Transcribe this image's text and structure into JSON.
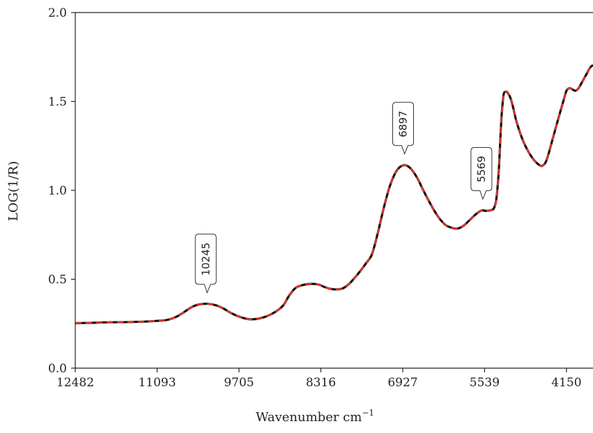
{
  "chart_data": {
    "type": "line",
    "title": "",
    "xlabel": "Wavenumber cm",
    "xlabel_superscript": "−1",
    "ylabel": "LOG(1/R)",
    "xlim": [
      12482,
      3700
    ],
    "ylim": [
      0.0,
      2.0
    ],
    "x_reversed": true,
    "x_ticks": [
      12482,
      11093,
      9705,
      8316,
      6927,
      5539,
      4150
    ],
    "x_tick_labels": [
      "12482",
      "11093",
      "9705",
      "8316",
      "6927",
      "5539",
      "4150"
    ],
    "y_ticks": [
      0.0,
      0.5,
      1.0,
      1.5,
      2.0
    ],
    "y_tick_labels": [
      "0.0",
      "0.5",
      "1.0",
      "1.5",
      "2.0"
    ],
    "grid": false,
    "series": [
      {
        "color": "#111111",
        "style": "solid",
        "x": [
          12482,
          12200,
          11900,
          11600,
          11300,
          11093,
          10950,
          10850,
          10750,
          10650,
          10550,
          10450,
          10350,
          10245,
          10150,
          10050,
          9950,
          9850,
          9705,
          9550,
          9400,
          9250,
          9150,
          9050,
          8950,
          8850,
          8750,
          8650,
          8550,
          8450,
          8350,
          8316,
          8250,
          8150,
          8050,
          7950,
          7850,
          7750,
          7650,
          7550,
          7450,
          7350,
          7250,
          7150,
          7050,
          6980,
          6927,
          6897,
          6850,
          6800,
          6750,
          6700,
          6650,
          6600,
          6500,
          6400,
          6300,
          6200,
          6100,
          6000,
          5900,
          5800,
          5700,
          5620,
          5569,
          5539,
          5500,
          5460,
          5420,
          5380,
          5340,
          5300,
          5270,
          5250,
          5220,
          5200,
          5170,
          5150,
          5100,
          5050,
          5000,
          4900,
          4800,
          4700,
          4600,
          4550,
          4500,
          4450,
          4400,
          4300,
          4200,
          4150,
          4100,
          4050,
          4000,
          3950,
          3900,
          3850,
          3800,
          3750,
          3700
        ],
        "y": [
          0.253,
          0.255,
          0.258,
          0.259,
          0.262,
          0.266,
          0.27,
          0.278,
          0.292,
          0.312,
          0.335,
          0.352,
          0.36,
          0.362,
          0.358,
          0.348,
          0.332,
          0.312,
          0.29,
          0.276,
          0.277,
          0.29,
          0.305,
          0.325,
          0.355,
          0.41,
          0.45,
          0.465,
          0.472,
          0.474,
          0.47,
          0.466,
          0.456,
          0.446,
          0.443,
          0.448,
          0.47,
          0.505,
          0.545,
          0.59,
          0.64,
          0.76,
          0.9,
          1.02,
          1.1,
          1.13,
          1.14,
          1.142,
          1.138,
          1.125,
          1.105,
          1.08,
          1.05,
          1.015,
          0.95,
          0.89,
          0.84,
          0.805,
          0.79,
          0.785,
          0.8,
          0.83,
          0.862,
          0.882,
          0.888,
          0.885,
          0.885,
          0.886,
          0.89,
          0.9,
          0.95,
          1.1,
          1.3,
          1.42,
          1.53,
          1.552,
          1.555,
          1.55,
          1.52,
          1.46,
          1.39,
          1.29,
          1.22,
          1.17,
          1.14,
          1.14,
          1.16,
          1.21,
          1.27,
          1.39,
          1.505,
          1.56,
          1.575,
          1.568,
          1.56,
          1.572,
          1.6,
          1.63,
          1.66,
          1.69,
          1.705
        ]
      },
      {
        "color": "#e0342a",
        "style": "dashed",
        "x": [
          12482,
          12200,
          11900,
          11600,
          11300,
          11093,
          10950,
          10850,
          10750,
          10650,
          10550,
          10450,
          10350,
          10245,
          10150,
          10050,
          9950,
          9850,
          9705,
          9550,
          9400,
          9250,
          9150,
          9050,
          8950,
          8850,
          8750,
          8650,
          8550,
          8450,
          8350,
          8316,
          8250,
          8150,
          8050,
          7950,
          7850,
          7750,
          7650,
          7550,
          7450,
          7350,
          7250,
          7150,
          7050,
          6980,
          6927,
          6897,
          6850,
          6800,
          6750,
          6700,
          6650,
          6600,
          6500,
          6400,
          6300,
          6200,
          6100,
          6000,
          5900,
          5800,
          5700,
          5620,
          5569,
          5539,
          5500,
          5460,
          5420,
          5380,
          5340,
          5300,
          5270,
          5250,
          5220,
          5200,
          5170,
          5150,
          5100,
          5050,
          5000,
          4900,
          4800,
          4700,
          4600,
          4550,
          4500,
          4450,
          4400,
          4300,
          4200,
          4150,
          4100,
          4050,
          4000,
          3950,
          3900,
          3850,
          3800,
          3750,
          3700
        ],
        "y": [
          0.253,
          0.255,
          0.258,
          0.259,
          0.262,
          0.266,
          0.27,
          0.278,
          0.292,
          0.312,
          0.335,
          0.352,
          0.36,
          0.362,
          0.358,
          0.348,
          0.332,
          0.312,
          0.29,
          0.276,
          0.277,
          0.29,
          0.305,
          0.325,
          0.355,
          0.41,
          0.45,
          0.465,
          0.472,
          0.474,
          0.47,
          0.466,
          0.456,
          0.446,
          0.443,
          0.448,
          0.47,
          0.505,
          0.545,
          0.59,
          0.64,
          0.76,
          0.9,
          1.02,
          1.1,
          1.13,
          1.14,
          1.142,
          1.138,
          1.125,
          1.105,
          1.08,
          1.05,
          1.015,
          0.95,
          0.89,
          0.84,
          0.805,
          0.79,
          0.785,
          0.8,
          0.83,
          0.862,
          0.882,
          0.888,
          0.885,
          0.885,
          0.886,
          0.89,
          0.9,
          0.95,
          1.1,
          1.3,
          1.42,
          1.53,
          1.552,
          1.555,
          1.55,
          1.52,
          1.46,
          1.39,
          1.29,
          1.22,
          1.17,
          1.14,
          1.14,
          1.16,
          1.21,
          1.27,
          1.39,
          1.505,
          1.56,
          1.575,
          1.568,
          1.56,
          1.572,
          1.6,
          1.63,
          1.66,
          1.69,
          1.705
        ]
      }
    ],
    "annotations": [
      {
        "text": "10245",
        "x": 10245,
        "y": 0.362
      },
      {
        "text": "6897",
        "x": 6897,
        "y": 1.142
      },
      {
        "text": "5569",
        "x": 5569,
        "y": 0.888
      }
    ]
  }
}
